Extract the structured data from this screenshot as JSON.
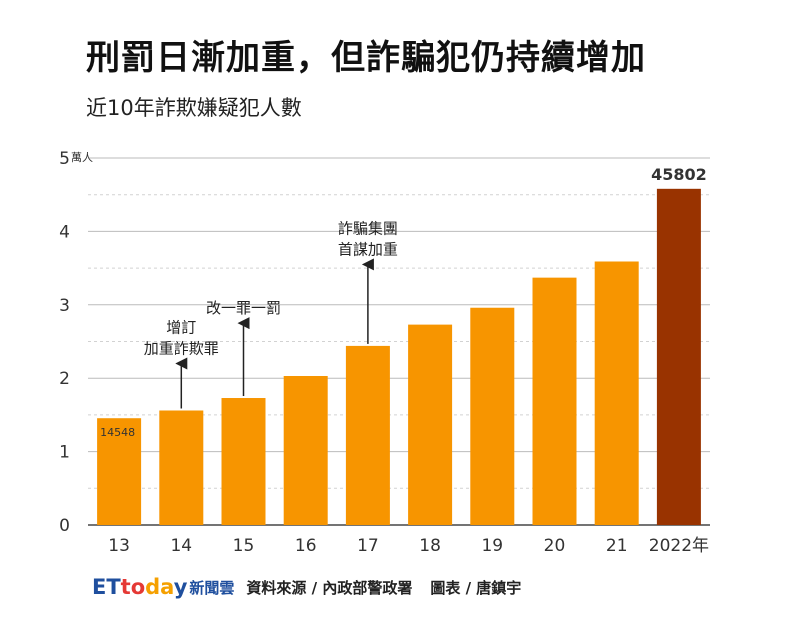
{
  "header": {
    "title": "刑罰日漸加重，但詐騙犯仍持續增加",
    "subtitle": "近10年詐欺嫌疑犯人數"
  },
  "footer": {
    "logo": [
      "ET",
      "to",
      "da",
      "y"
    ],
    "logo_tail": "新聞雲",
    "source": "資料來源 / 內政部警政署",
    "credit": "圖表 / 唐鎮宇"
  },
  "colors": {
    "bar": "#f79500",
    "highlight": "#993300",
    "axis": "#222222",
    "grid": "#bbbbbb"
  },
  "chart_data": {
    "type": "bar",
    "categories": [
      "13",
      "14",
      "15",
      "16",
      "17",
      "18",
      "19",
      "20",
      "21",
      "2022年"
    ],
    "values": [
      14548,
      15600,
      17300,
      20300,
      24400,
      27300,
      29600,
      33700,
      35900,
      45802
    ],
    "yticks": [
      "0",
      "1",
      "2",
      "3",
      "4",
      "5"
    ],
    "yunit": "萬人",
    "ylim": [
      0,
      50000
    ],
    "grid": true,
    "highlight_index": 9,
    "data_labels": [
      {
        "index": 0,
        "text": "14548"
      },
      {
        "index": 9,
        "text": "45802"
      }
    ],
    "annotations": [
      {
        "index": 1,
        "lines": [
          "增訂",
          "加重詐欺罪"
        ],
        "value_top": 22000
      },
      {
        "index": 2,
        "lines": [
          "改一罪一罰"
        ],
        "value_top": 27500
      },
      {
        "index": 4,
        "lines": [
          "詐騙集團",
          "首謀加重"
        ],
        "value_top": 35500
      }
    ]
  }
}
